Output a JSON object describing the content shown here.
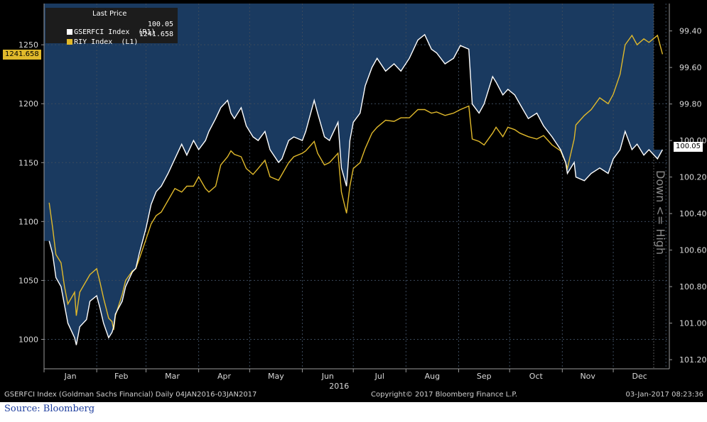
{
  "footer": {
    "left": "GSERFCI Index (Goldman Sachs Financial)  Daily 04JAN2016-03JAN2017",
    "center": "Copyright© 2017 Bloomberg Finance L.P.",
    "right": "03-Jan-2017 08:23:36"
  },
  "source_note": "Source: Bloomberg",
  "legend": {
    "header": "Last Price",
    "items": [
      {
        "label": "GSERFCI Index  (R1)",
        "value": "100.05",
        "color": "#ffffff"
      },
      {
        "label": "RIY Index  (L1)",
        "value": "1241.658",
        "color": "#e0b92b"
      }
    ]
  },
  "tags": {
    "left_last": "1241.658",
    "right_last": "100.05"
  },
  "right_axis_label": "Down <= High",
  "colors": {
    "background": "#000000",
    "fill_area": "#1a3a60",
    "gserfci_line": "#ffffff",
    "riy_line": "#e0b92b",
    "grid": "#3b4a5c"
  },
  "chart_data": {
    "type": "line",
    "title": "",
    "x_axis": {
      "months": [
        "Jan",
        "Feb",
        "Mar",
        "Apr",
        "May",
        "Jun",
        "Jul",
        "Aug",
        "Sep",
        "Oct",
        "Nov",
        "Dec"
      ],
      "year_label": "2016"
    },
    "left_axis": {
      "ticks": [
        "1000",
        "1050",
        "1100",
        "1150",
        "1200",
        "1250"
      ],
      "range": [
        975,
        1285
      ]
    },
    "right_axis": {
      "ticks": [
        "99.40",
        "99.60",
        "99.80",
        "100.00",
        "100.20",
        "100.40",
        "100.60",
        "100.80",
        "101.00",
        "101.20"
      ],
      "range": [
        99.25,
        101.25
      ],
      "inverted": true
    },
    "grid": true,
    "legend_position": "top-left",
    "series": [
      {
        "name": "RIY Index (L1)",
        "axis": "left",
        "points": [
          [
            "2016-01-04",
            1116
          ],
          [
            "2016-01-06",
            1095
          ],
          [
            "2016-01-08",
            1072
          ],
          [
            "2016-01-11",
            1065
          ],
          [
            "2016-01-13",
            1045
          ],
          [
            "2016-01-15",
            1030
          ],
          [
            "2016-01-19",
            1040
          ],
          [
            "2016-01-20",
            1020
          ],
          [
            "2016-01-22",
            1040
          ],
          [
            "2016-01-26",
            1050
          ],
          [
            "2016-01-28",
            1055
          ],
          [
            "2016-02-01",
            1060
          ],
          [
            "2016-02-03",
            1048
          ],
          [
            "2016-02-05",
            1035
          ],
          [
            "2016-02-08",
            1018
          ],
          [
            "2016-02-10",
            1015
          ],
          [
            "2016-02-11",
            1008
          ],
          [
            "2016-02-12",
            1020
          ],
          [
            "2016-02-16",
            1038
          ],
          [
            "2016-02-18",
            1050
          ],
          [
            "2016-02-22",
            1058
          ],
          [
            "2016-02-24",
            1060
          ],
          [
            "2016-02-26",
            1068
          ],
          [
            "2016-03-01",
            1085
          ],
          [
            "2016-03-04",
            1098
          ],
          [
            "2016-03-07",
            1105
          ],
          [
            "2016-03-10",
            1108
          ],
          [
            "2016-03-14",
            1118
          ],
          [
            "2016-03-18",
            1128
          ],
          [
            "2016-03-22",
            1125
          ],
          [
            "2016-03-25",
            1130
          ],
          [
            "2016-03-29",
            1130
          ],
          [
            "2016-04-01",
            1138
          ],
          [
            "2016-04-05",
            1128
          ],
          [
            "2016-04-07",
            1125
          ],
          [
            "2016-04-11",
            1130
          ],
          [
            "2016-04-14",
            1148
          ],
          [
            "2016-04-18",
            1155
          ],
          [
            "2016-04-20",
            1160
          ],
          [
            "2016-04-22",
            1157
          ],
          [
            "2016-04-26",
            1155
          ],
          [
            "2016-04-29",
            1145
          ],
          [
            "2016-05-03",
            1140
          ],
          [
            "2016-05-06",
            1145
          ],
          [
            "2016-05-10",
            1152
          ],
          [
            "2016-05-13",
            1138
          ],
          [
            "2016-05-18",
            1135
          ],
          [
            "2016-05-20",
            1140
          ],
          [
            "2016-05-24",
            1150
          ],
          [
            "2016-05-27",
            1155
          ],
          [
            "2016-06-01",
            1158
          ],
          [
            "2016-06-03",
            1160
          ],
          [
            "2016-06-08",
            1168
          ],
          [
            "2016-06-10",
            1158
          ],
          [
            "2016-06-14",
            1148
          ],
          [
            "2016-06-17",
            1150
          ],
          [
            "2016-06-22",
            1158
          ],
          [
            "2016-06-24",
            1125
          ],
          [
            "2016-06-27",
            1107
          ],
          [
            "2016-06-29",
            1130
          ],
          [
            "2016-07-01",
            1145
          ],
          [
            "2016-07-05",
            1150
          ],
          [
            "2016-07-08",
            1162
          ],
          [
            "2016-07-12",
            1175
          ],
          [
            "2016-07-15",
            1180
          ],
          [
            "2016-07-20",
            1186
          ],
          [
            "2016-07-25",
            1185
          ],
          [
            "2016-07-29",
            1188
          ],
          [
            "2016-08-03",
            1188
          ],
          [
            "2016-08-08",
            1195
          ],
          [
            "2016-08-12",
            1195
          ],
          [
            "2016-08-16",
            1192
          ],
          [
            "2016-08-19",
            1193
          ],
          [
            "2016-08-24",
            1190
          ],
          [
            "2016-08-29",
            1192
          ],
          [
            "2016-09-02",
            1195
          ],
          [
            "2016-09-07",
            1198
          ],
          [
            "2016-09-09",
            1170
          ],
          [
            "2016-09-13",
            1168
          ],
          [
            "2016-09-16",
            1165
          ],
          [
            "2016-09-21",
            1175
          ],
          [
            "2016-09-23",
            1180
          ],
          [
            "2016-09-27",
            1172
          ],
          [
            "2016-09-30",
            1180
          ],
          [
            "2016-10-04",
            1178
          ],
          [
            "2016-10-07",
            1175
          ],
          [
            "2016-10-12",
            1172
          ],
          [
            "2016-10-17",
            1170
          ],
          [
            "2016-10-21",
            1173
          ],
          [
            "2016-10-26",
            1165
          ],
          [
            "2016-10-31",
            1160
          ],
          [
            "2016-11-03",
            1150
          ],
          [
            "2016-11-04",
            1145
          ],
          [
            "2016-11-08",
            1170
          ],
          [
            "2016-11-09",
            1182
          ],
          [
            "2016-11-14",
            1190
          ],
          [
            "2016-11-18",
            1195
          ],
          [
            "2016-11-23",
            1205
          ],
          [
            "2016-11-28",
            1200
          ],
          [
            "2016-12-01",
            1208
          ],
          [
            "2016-12-05",
            1225
          ],
          [
            "2016-12-08",
            1250
          ],
          [
            "2016-12-12",
            1258
          ],
          [
            "2016-12-15",
            1250
          ],
          [
            "2016-12-19",
            1255
          ],
          [
            "2016-12-22",
            1252
          ],
          [
            "2016-12-27",
            1258
          ],
          [
            "2016-12-30",
            1242
          ]
        ]
      },
      {
        "name": "GSERFCI Index (R1)",
        "axis": "right",
        "points": [
          [
            "2016-01-04",
            100.55
          ],
          [
            "2016-01-06",
            100.62
          ],
          [
            "2016-01-08",
            100.75
          ],
          [
            "2016-01-11",
            100.8
          ],
          [
            "2016-01-13",
            100.9
          ],
          [
            "2016-01-15",
            101.0
          ],
          [
            "2016-01-19",
            101.08
          ],
          [
            "2016-01-20",
            101.12
          ],
          [
            "2016-01-22",
            101.02
          ],
          [
            "2016-01-26",
            100.98
          ],
          [
            "2016-01-28",
            100.88
          ],
          [
            "2016-02-01",
            100.85
          ],
          [
            "2016-02-03",
            100.92
          ],
          [
            "2016-02-05",
            101.0
          ],
          [
            "2016-02-08",
            101.08
          ],
          [
            "2016-02-10",
            101.05
          ],
          [
            "2016-02-11",
            101.02
          ],
          [
            "2016-02-12",
            100.95
          ],
          [
            "2016-02-16",
            100.88
          ],
          [
            "2016-02-18",
            100.8
          ],
          [
            "2016-02-22",
            100.72
          ],
          [
            "2016-02-24",
            100.7
          ],
          [
            "2016-02-26",
            100.62
          ],
          [
            "2016-03-01",
            100.48
          ],
          [
            "2016-03-04",
            100.35
          ],
          [
            "2016-03-07",
            100.28
          ],
          [
            "2016-03-10",
            100.25
          ],
          [
            "2016-03-14",
            100.18
          ],
          [
            "2016-03-18",
            100.1
          ],
          [
            "2016-03-22",
            100.02
          ],
          [
            "2016-03-25",
            100.08
          ],
          [
            "2016-03-29",
            100.0
          ],
          [
            "2016-04-01",
            100.05
          ],
          [
            "2016-04-05",
            100.0
          ],
          [
            "2016-04-07",
            99.95
          ],
          [
            "2016-04-11",
            99.88
          ],
          [
            "2016-04-14",
            99.82
          ],
          [
            "2016-04-18",
            99.78
          ],
          [
            "2016-04-20",
            99.85
          ],
          [
            "2016-04-22",
            99.88
          ],
          [
            "2016-04-26",
            99.82
          ],
          [
            "2016-04-29",
            99.92
          ],
          [
            "2016-05-03",
            99.98
          ],
          [
            "2016-05-06",
            100.0
          ],
          [
            "2016-05-10",
            99.95
          ],
          [
            "2016-05-13",
            100.05
          ],
          [
            "2016-05-18",
            100.12
          ],
          [
            "2016-05-20",
            100.1
          ],
          [
            "2016-05-24",
            100.0
          ],
          [
            "2016-05-27",
            99.98
          ],
          [
            "2016-06-01",
            100.0
          ],
          [
            "2016-06-03",
            99.95
          ],
          [
            "2016-06-08",
            99.78
          ],
          [
            "2016-06-10",
            99.85
          ],
          [
            "2016-06-14",
            99.98
          ],
          [
            "2016-06-17",
            100.0
          ],
          [
            "2016-06-22",
            99.9
          ],
          [
            "2016-06-24",
            100.15
          ],
          [
            "2016-06-27",
            100.25
          ],
          [
            "2016-06-29",
            100.0
          ],
          [
            "2016-07-01",
            99.9
          ],
          [
            "2016-07-05",
            99.85
          ],
          [
            "2016-07-08",
            99.7
          ],
          [
            "2016-07-12",
            99.6
          ],
          [
            "2016-07-15",
            99.55
          ],
          [
            "2016-07-20",
            99.62
          ],
          [
            "2016-07-25",
            99.58
          ],
          [
            "2016-07-29",
            99.62
          ],
          [
            "2016-08-03",
            99.55
          ],
          [
            "2016-08-08",
            99.45
          ],
          [
            "2016-08-12",
            99.42
          ],
          [
            "2016-08-16",
            99.5
          ],
          [
            "2016-08-19",
            99.52
          ],
          [
            "2016-08-24",
            99.58
          ],
          [
            "2016-08-29",
            99.55
          ],
          [
            "2016-09-02",
            99.48
          ],
          [
            "2016-09-07",
            99.5
          ],
          [
            "2016-09-09",
            99.8
          ],
          [
            "2016-09-13",
            99.85
          ],
          [
            "2016-09-16",
            99.8
          ],
          [
            "2016-09-21",
            99.65
          ],
          [
            "2016-09-23",
            99.68
          ],
          [
            "2016-09-27",
            99.75
          ],
          [
            "2016-09-30",
            99.72
          ],
          [
            "2016-10-04",
            99.75
          ],
          [
            "2016-10-07",
            99.8
          ],
          [
            "2016-10-12",
            99.88
          ],
          [
            "2016-10-17",
            99.85
          ],
          [
            "2016-10-21",
            99.92
          ],
          [
            "2016-10-26",
            99.98
          ],
          [
            "2016-10-31",
            100.05
          ],
          [
            "2016-11-03",
            100.12
          ],
          [
            "2016-11-04",
            100.18
          ],
          [
            "2016-11-08",
            100.12
          ],
          [
            "2016-11-09",
            100.2
          ],
          [
            "2016-11-14",
            100.22
          ],
          [
            "2016-11-18",
            100.18
          ],
          [
            "2016-11-23",
            100.15
          ],
          [
            "2016-11-28",
            100.18
          ],
          [
            "2016-12-01",
            100.1
          ],
          [
            "2016-12-05",
            100.05
          ],
          [
            "2016-12-08",
            99.95
          ],
          [
            "2016-12-12",
            100.05
          ],
          [
            "2016-12-15",
            100.02
          ],
          [
            "2016-12-19",
            100.08
          ],
          [
            "2016-12-22",
            100.05
          ],
          [
            "2016-12-27",
            100.1
          ],
          [
            "2016-12-30",
            100.05
          ]
        ]
      }
    ]
  }
}
